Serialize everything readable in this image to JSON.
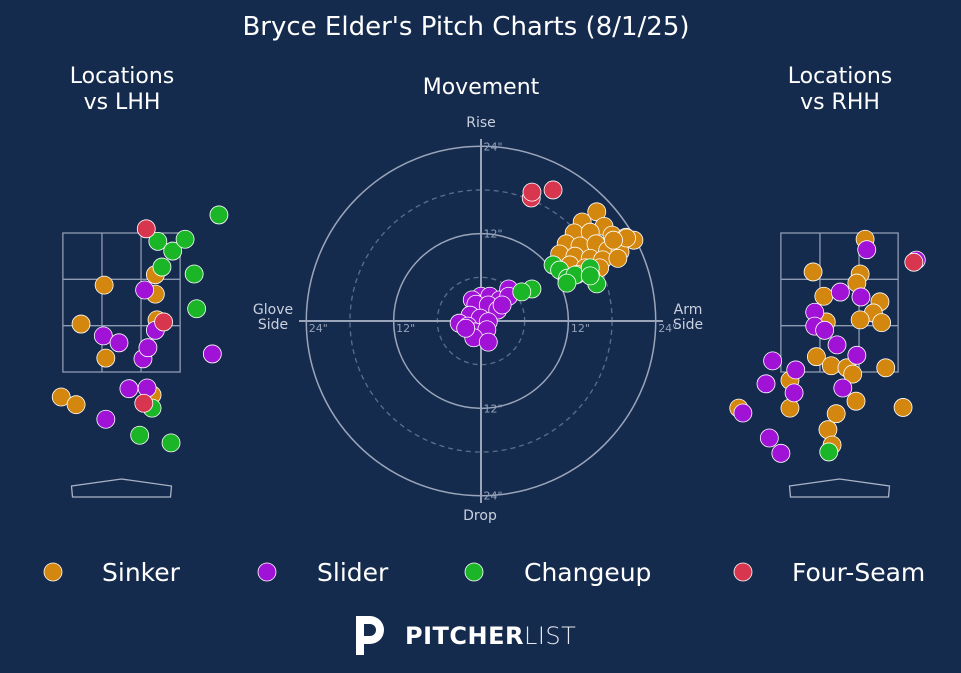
{
  "title": "Bryce Elder's Pitch Charts (8/1/25)",
  "logo": [
    "PITCHER",
    "LIST"
  ],
  "chart_data": [
    {
      "type": "scatter",
      "title": "Locations\nvs LHH",
      "xlim": [
        -1.4,
        1.4
      ],
      "ylim": [
        -0.5,
        4.5
      ],
      "strike_zone": {
        "xlim": [
          -0.71,
          0.71
        ],
        "ylim": [
          1.5,
          3.5
        ]
      },
      "series": [
        {
          "name": "Sinker",
          "color": "#d4870f",
          "x": [
            -0.21,
            -0.49,
            -0.19,
            0.41,
            0.41,
            0.43,
            -0.73,
            -0.55,
            0.37
          ],
          "values": [
            2.75,
            2.19,
            1.7,
            2.9,
            2.62,
            2.25,
            1.14,
            1.03,
            1.17
          ]
        },
        {
          "name": "Slider",
          "color": "#a012d6",
          "x": [
            0.28,
            -0.22,
            -0.03,
            0.26,
            0.32,
            0.41,
            0.09,
            0.31,
            -0.19,
            1.1
          ],
          "values": [
            2.68,
            2.02,
            1.92,
            1.69,
            1.85,
            2.1,
            1.26,
            1.27,
            0.82,
            1.76
          ]
        },
        {
          "name": "Changeup",
          "color": "#1bb627",
          "x": [
            1.18,
            0.44,
            0.62,
            0.77,
            0.49,
            0.88,
            0.91,
            0.37,
            0.22,
            0.6
          ],
          "values": [
            3.76,
            3.38,
            3.24,
            3.41,
            3.01,
            2.91,
            2.41,
            0.98,
            0.59,
            0.48
          ]
        },
        {
          "name": "Four-Seam",
          "color": "#d8364e",
          "x": [
            0.3,
            0.51,
            0.27
          ],
          "values": [
            3.56,
            2.22,
            1.05
          ]
        }
      ]
    },
    {
      "type": "movement",
      "title": "Movement",
      "labels": {
        "top": "Rise",
        "bottom": "Drop",
        "left": "Glove\nSide",
        "right": "Arm\nSide"
      },
      "xlim": [
        -25,
        25
      ],
      "ylim": [
        -25,
        25
      ],
      "xticks": [
        {
          "value": -24,
          "label": "24\""
        },
        {
          "value": -12,
          "label": "12\""
        },
        {
          "value": 12,
          "label": "12\""
        },
        {
          "value": 24,
          "label": "24\""
        }
      ],
      "yticks": [
        {
          "value": -24,
          "label": "24\""
        },
        {
          "value": -12,
          "label": "12\""
        },
        {
          "value": 12,
          "label": "12\""
        },
        {
          "value": 24,
          "label": "24\""
        }
      ],
      "series": [
        {
          "color": "#d4870f",
          "x": [
            15.9,
            13.9,
            16.9,
            12.8,
            15.0,
            18.0,
            19.9,
            21.0,
            11.7,
            13.6,
            15.8,
            17.4,
            19.1,
            10.8,
            12.9,
            15.0,
            16.7,
            18.8,
            12.2,
            14.3,
            16.3,
            13.2,
            15.1,
            20.0,
            18.2
          ],
          "values": [
            15.0,
            13.6,
            13.0,
            12.1,
            12.2,
            11.8,
            11.5,
            11.1,
            10.6,
            10.3,
            10.6,
            9.7,
            9.5,
            9.2,
            8.9,
            8.6,
            8.4,
            8.6,
            7.7,
            7.3,
            7.3,
            6.4,
            6.2,
            11.4,
            11.1
          ]
        },
        {
          "color": "#a012d6",
          "x": [
            0.0,
            1.2,
            -1.2,
            2.6,
            3.8,
            3.8,
            -0.7,
            1.0,
            2.3,
            -1.5,
            -0.1,
            -3.0,
            -1.8,
            1.0,
            -0.8,
            0.8,
            -1.0,
            1.0,
            -2.1,
            2.9
          ],
          "values": [
            3.4,
            3.4,
            2.9,
            2.9,
            4.4,
            3.4,
            2.3,
            2.2,
            1.5,
            0.8,
            0.4,
            -0.3,
            -0.7,
            -0.1,
            -1.5,
            -1.2,
            -2.3,
            -2.9,
            -1.0,
            2.2
          ]
        },
        {
          "color": "#1bb627",
          "x": [
            9.9,
            10.8,
            11.9,
            12.9,
            15.0,
            15.9,
            15.0,
            7.0,
            5.6,
            11.8
          ],
          "values": [
            7.7,
            7.0,
            5.9,
            6.3,
            7.3,
            5.1,
            6.2,
            4.4,
            4.0,
            5.2
          ]
        },
        {
          "color": "#d8364e",
          "x": [
            6.9,
            7.0,
            9.9
          ],
          "values": [
            16.9,
            17.7,
            18.0
          ]
        }
      ]
    },
    {
      "type": "scatter",
      "title": "Locations\nvs RHH",
      "xlim": [
        -1.4,
        1.4
      ],
      "ylim": [
        -0.5,
        4.5
      ],
      "strike_zone": {
        "xlim": [
          -0.71,
          0.71
        ],
        "ylim": [
          1.5,
          3.5
        ]
      },
      "series": [
        {
          "color": "#d4870f",
          "x": [
            0.31,
            -0.32,
            0.25,
            0.21,
            -0.19,
            0.49,
            0.41,
            0.25,
            0.51,
            -0.16,
            -0.28,
            -0.1,
            0.09,
            0.16,
            0.56,
            -0.6,
            -0.6,
            -0.04,
            0.2,
            -0.14,
            -0.09,
            0.77,
            -1.22
          ],
          "values": [
            3.41,
            2.94,
            2.91,
            2.78,
            2.59,
            2.51,
            2.35,
            2.25,
            2.21,
            2.22,
            1.72,
            1.59,
            1.56,
            1.47,
            1.56,
            1.38,
            0.98,
            0.9,
            1.08,
            0.67,
            0.45,
            0.99,
            0.98
          ]
        },
        {
          "color": "#a012d6",
          "x": [
            0.33,
            0.93,
            0.01,
            0.26,
            -0.3,
            -0.3,
            -0.18,
            -0.03,
            0.21,
            -0.81,
            -0.53,
            -0.89,
            -0.55,
            0.04,
            -1.17,
            -0.85,
            -0.71
          ],
          "values": [
            3.26,
            3.11,
            2.65,
            2.58,
            2.36,
            2.16,
            2.1,
            1.89,
            1.74,
            1.66,
            1.53,
            1.33,
            1.2,
            1.27,
            0.91,
            0.55,
            0.33
          ]
        },
        {
          "color": "#1bb627",
          "x": [
            -0.13
          ],
          "values": [
            0.35
          ]
        },
        {
          "color": "#d8364e",
          "x": [
            0.9
          ],
          "values": [
            3.08
          ]
        }
      ]
    }
  ]
}
